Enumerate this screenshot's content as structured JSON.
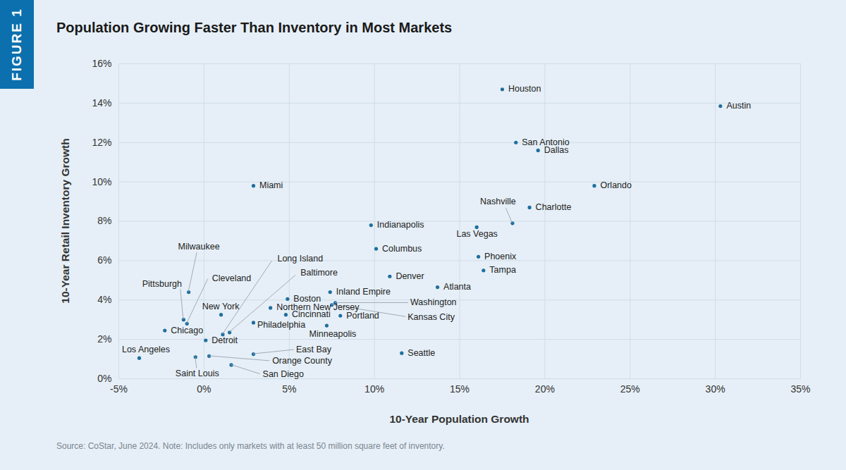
{
  "chart_data": {
    "type": "scatter",
    "figure_label": "FIGURE 1",
    "title": "Population Growing Faster Than Inventory in Most Markets",
    "x_label": "10-Year Population Growth",
    "y_label": "10-Year Retail Inventory Growth",
    "note": "Source: CoStar, June 2024. Note: Includes only markets with at least 50 million square feet of inventory.",
    "color": "#1f6f9f",
    "grid": true,
    "labels": [
      "Houston",
      "Austin",
      "San Antonio",
      "Dallas",
      "Orlando",
      "Miami",
      "Charlotte",
      "Nashville",
      "Las Vegas",
      "Indianapolis",
      "Columbus",
      "Phoenix",
      "Tampa",
      "Denver",
      "Atlanta",
      "Inland Empire",
      "Boston",
      "Washington",
      "Kansas City",
      "Northern New Jersey",
      "New York",
      "Cincinnati",
      "Portland",
      "Philadelphia",
      "Minneapolis",
      "Milwaukee",
      "Pittsburgh",
      "Cleveland",
      "Chicago",
      "Long Island",
      "Baltimore",
      "Detroit",
      "Los Angeles",
      "Saint Louis",
      "Orange County",
      "East Bay",
      "San Diego",
      "Seattle"
    ],
    "x": [
      17.5,
      30.3,
      18.3,
      19.6,
      22.9,
      2.9,
      19.1,
      18.1,
      16.0,
      9.8,
      10.1,
      16.1,
      16.4,
      10.9,
      13.7,
      7.4,
      4.9,
      7.7,
      7.5,
      3.9,
      1.0,
      4.8,
      8.0,
      2.9,
      7.2,
      -0.9,
      -1.2,
      -1.0,
      -2.3,
      1.1,
      1.5,
      0.1,
      -3.8,
      -0.5,
      0.3,
      2.9,
      1.6,
      11.6
    ],
    "values": [
      14.7,
      13.85,
      12.0,
      11.6,
      9.8,
      9.8,
      8.7,
      7.9,
      7.7,
      7.8,
      6.6,
      6.2,
      5.5,
      5.2,
      4.65,
      4.4,
      4.05,
      3.85,
      3.75,
      3.6,
      3.25,
      3.25,
      3.2,
      2.85,
      2.7,
      4.4,
      3.0,
      2.8,
      2.45,
      2.25,
      2.35,
      1.95,
      1.05,
      1.1,
      1.15,
      1.25,
      0.7,
      1.3
    ],
    "xlim": [
      -5,
      35
    ],
    "xticks": [
      {
        "value": -5,
        "label": "-5%"
      },
      {
        "value": 0,
        "label": "0%"
      },
      {
        "value": 5,
        "label": "5%"
      },
      {
        "value": 10,
        "label": "10%"
      },
      {
        "value": 15,
        "label": "15%"
      },
      {
        "value": 20,
        "label": "20%"
      },
      {
        "value": 25,
        "label": "25%"
      },
      {
        "value": 30,
        "label": "30%"
      },
      {
        "value": 35,
        "label": "35%"
      }
    ],
    "ylim": [
      0,
      16
    ],
    "yticks": [
      {
        "value": 0,
        "label": "0%"
      },
      {
        "value": 2,
        "label": "2%"
      },
      {
        "value": 4,
        "label": "4%"
      },
      {
        "value": 6,
        "label": "6%"
      },
      {
        "value": 8,
        "label": "8%"
      },
      {
        "value": 10,
        "label": "10%"
      },
      {
        "value": 12,
        "label": "12%"
      },
      {
        "value": 14,
        "label": "14%"
      },
      {
        "value": 16,
        "label": "16%"
      }
    ]
  }
}
